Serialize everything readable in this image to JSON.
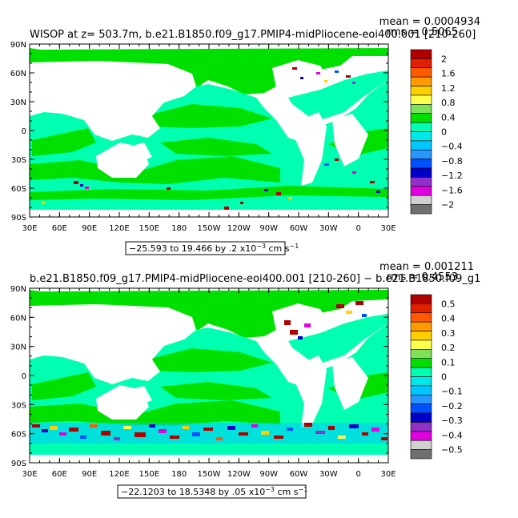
{
  "chart_data": [
    {
      "type": "heatmap",
      "title": "WISOP at z= 503.7m, b.e21.B1850.f09_g17.PMIP4-midPliocene-eoi400.001 [210-260]",
      "stats": {
        "mean": "mean = 0.0004934",
        "rms": "rms = 0.5065"
      },
      "x_ticks": [
        "30E",
        "60E",
        "90E",
        "120E",
        "150E",
        "180",
        "150W",
        "120W",
        "90W",
        "60W",
        "30W",
        "0",
        "30E"
      ],
      "y_ticks": [
        "90N",
        "60N",
        "30N",
        "0",
        "30S",
        "60S",
        "90S"
      ],
      "xlim": [
        30,
        390
      ],
      "ylim": [
        -90,
        90
      ],
      "range_caption": "−25.593 to 19.466 by .2 x10",
      "range_exponent": "−3",
      "range_units": " cm s",
      "range_units_exponent": "−1",
      "colorbar": {
        "labels": [
          "2",
          "1.6",
          "1.2",
          "0.8",
          "0.4",
          "0",
          "−0.4",
          "−0.8",
          "−1.2",
          "−1.6",
          "−2"
        ],
        "colors": [
          "#b00000",
          "#e02000",
          "#ff5a00",
          "#ff9a00",
          "#ffd000",
          "#ffff4a",
          "#7fe05a",
          "#00e000",
          "#00ffb0",
          "#00e8e8",
          "#00c8ff",
          "#2896ff",
          "#0050ff",
          "#0000c8",
          "#9030c8",
          "#e000e0",
          "#d0d0d0",
          "#707070"
        ]
      }
    },
    {
      "type": "heatmap",
      "title": "b.e21.B1850.f09_g17.PMIP4-midPliocene-eoi400.001 [210-260] − b.e21.B1850.f09_g1",
      "stats": {
        "mean": "mean = 0.001211",
        "rms": "rms = 0.4553"
      },
      "x_ticks": [
        "30E",
        "60E",
        "90E",
        "120E",
        "150E",
        "180",
        "150W",
        "120W",
        "90W",
        "60W",
        "30W",
        "0",
        "30E"
      ],
      "y_ticks": [
        "90N",
        "60N",
        "30N",
        "0",
        "30S",
        "60S",
        "90S"
      ],
      "xlim": [
        30,
        390
      ],
      "ylim": [
        -90,
        90
      ],
      "range_caption": "−22.1203 to 18.5348 by .05 x10",
      "range_exponent": "−3",
      "range_units": " cm s",
      "range_units_exponent": "−1",
      "colorbar": {
        "labels": [
          "0.5",
          "0.4",
          "0.3",
          "0.2",
          "0.1",
          "0",
          "−0.1",
          "−0.2",
          "−0.3",
          "−0.4",
          "−0.5"
        ],
        "colors": [
          "#b00000",
          "#e02000",
          "#ff5a00",
          "#ff9a00",
          "#ffd000",
          "#ffff4a",
          "#7fe05a",
          "#00e000",
          "#00ffb0",
          "#00e8e8",
          "#00c8ff",
          "#2896ff",
          "#0050ff",
          "#0000c8",
          "#9030c8",
          "#e000e0",
          "#d0d0d0",
          "#707070"
        ]
      }
    }
  ]
}
